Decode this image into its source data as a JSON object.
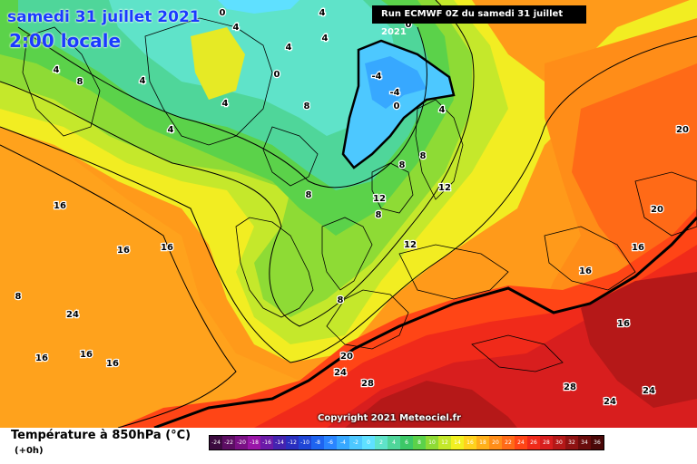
{
  "title": {
    "date": "samedi 31 juillet 2021",
    "time": "2:00 locale"
  },
  "run_label": "Run ECMWF 0Z du samedi 31 juillet 2021",
  "copyright": "Copyright 2021 Meteociel.fr",
  "parameter": "Température à 850hPa (°C)",
  "lead_time": "(+0h)",
  "scale": [
    {
      "label": "-24",
      "color": "#3b0a3f"
    },
    {
      "label": "-22",
      "color": "#5c0d63"
    },
    {
      "label": "-20",
      "color": "#7a1085"
    },
    {
      "label": "-18",
      "color": "#9a15a8"
    },
    {
      "label": "-16",
      "color": "#6b1aa8"
    },
    {
      "label": "-14",
      "color": "#4423b0"
    },
    {
      "label": "-12",
      "color": "#2a2fc0"
    },
    {
      "label": "-10",
      "color": "#1f45d6"
    },
    {
      "label": "-8",
      "color": "#1e64f0"
    },
    {
      "label": "-6",
      "color": "#2a85ff"
    },
    {
      "label": "-4",
      "color": "#37a8ff"
    },
    {
      "label": "-2",
      "color": "#4dc8ff"
    },
    {
      "label": "0",
      "color": "#5fe0ff"
    },
    {
      "label": "2",
      "color": "#5fe3c9"
    },
    {
      "label": "4",
      "color": "#4fd69a"
    },
    {
      "label": "6",
      "color": "#3cc867"
    },
    {
      "label": "8",
      "color": "#5bd24a"
    },
    {
      "label": "10",
      "color": "#8edb35"
    },
    {
      "label": "12",
      "color": "#c3e82a"
    },
    {
      "label": "14",
      "color": "#f2f020"
    },
    {
      "label": "16",
      "color": "#ffd21c"
    },
    {
      "label": "18",
      "color": "#ffb01a"
    },
    {
      "label": "20",
      "color": "#ff8d18"
    },
    {
      "label": "22",
      "color": "#ff6a17"
    },
    {
      "label": "24",
      "color": "#ff4516"
    },
    {
      "label": "26",
      "color": "#f02a1a"
    },
    {
      "label": "28",
      "color": "#d81e1e"
    },
    {
      "label": "30",
      "color": "#b51818"
    },
    {
      "label": "32",
      "color": "#8f1212"
    },
    {
      "label": "34",
      "color": "#6a0c0c"
    },
    {
      "label": "36",
      "color": "#4a0808"
    }
  ],
  "isotherm_labels": [
    {
      "text": "0"
    },
    {
      "text": "4"
    },
    {
      "text": "4"
    },
    {
      "text": "4"
    },
    {
      "text": "4"
    },
    {
      "text": "8"
    },
    {
      "text": "4"
    },
    {
      "text": "0"
    },
    {
      "text": "4"
    },
    {
      "text": "4"
    },
    {
      "text": "8"
    },
    {
      "text": "4"
    },
    {
      "text": "-4"
    },
    {
      "text": "-4"
    },
    {
      "text": "0"
    },
    {
      "text": "4"
    },
    {
      "text": "8"
    },
    {
      "text": "8"
    },
    {
      "text": "8"
    },
    {
      "text": "8"
    },
    {
      "text": "12"
    },
    {
      "text": "12"
    },
    {
      "text": "8"
    },
    {
      "text": "12"
    },
    {
      "text": "16"
    },
    {
      "text": "16"
    },
    {
      "text": "16"
    },
    {
      "text": "16"
    },
    {
      "text": "16"
    },
    {
      "text": "16"
    },
    {
      "text": "16"
    },
    {
      "text": "20"
    },
    {
      "text": "24"
    },
    {
      "text": "28"
    },
    {
      "text": "20"
    },
    {
      "text": "20"
    },
    {
      "text": "16"
    },
    {
      "text": "16"
    },
    {
      "text": "28"
    },
    {
      "text": "24"
    },
    {
      "text": "24"
    },
    {
      "text": "24"
    },
    {
      "text": "0"
    },
    {
      "text": "8"
    }
  ]
}
